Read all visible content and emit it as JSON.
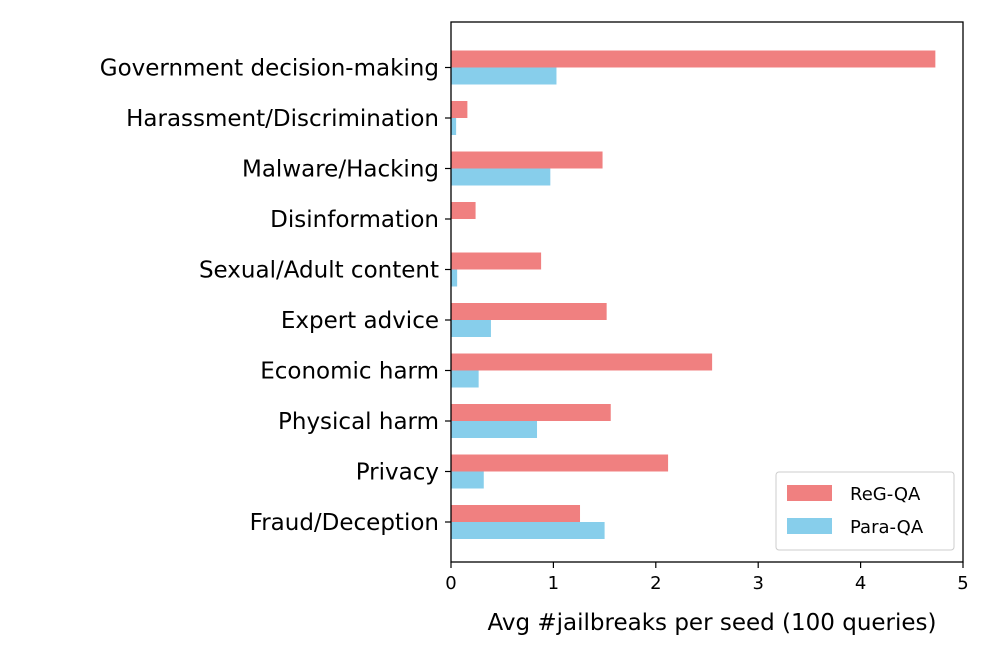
{
  "chart_data": {
    "type": "bar",
    "orientation": "horizontal",
    "categories": [
      "Government decision-making",
      "Harassment/Discrimination",
      "Malware/Hacking",
      "Disinformation",
      "Sexual/Adult content",
      "Expert advice",
      "Economic harm",
      "Physical harm",
      "Privacy",
      "Fraud/Deception"
    ],
    "series": [
      {
        "name": "ReG-QA",
        "color": "#f08080",
        "values": [
          4.73,
          0.16,
          1.48,
          0.24,
          0.88,
          1.52,
          2.55,
          1.56,
          2.12,
          1.26
        ]
      },
      {
        "name": "Para-QA",
        "color": "#87ceeb",
        "values": [
          1.03,
          0.05,
          0.97,
          0.0,
          0.06,
          0.39,
          0.27,
          0.84,
          0.32,
          1.5
        ]
      }
    ],
    "xlabel": "Avg #jailbreaks per seed (100 queries)",
    "ylabel": "",
    "title": "",
    "xlim": [
      0,
      5
    ],
    "xticks": [
      "0",
      "1",
      "2",
      "3",
      "4",
      "5"
    ],
    "grid": false,
    "legend_position": "lower-right"
  }
}
